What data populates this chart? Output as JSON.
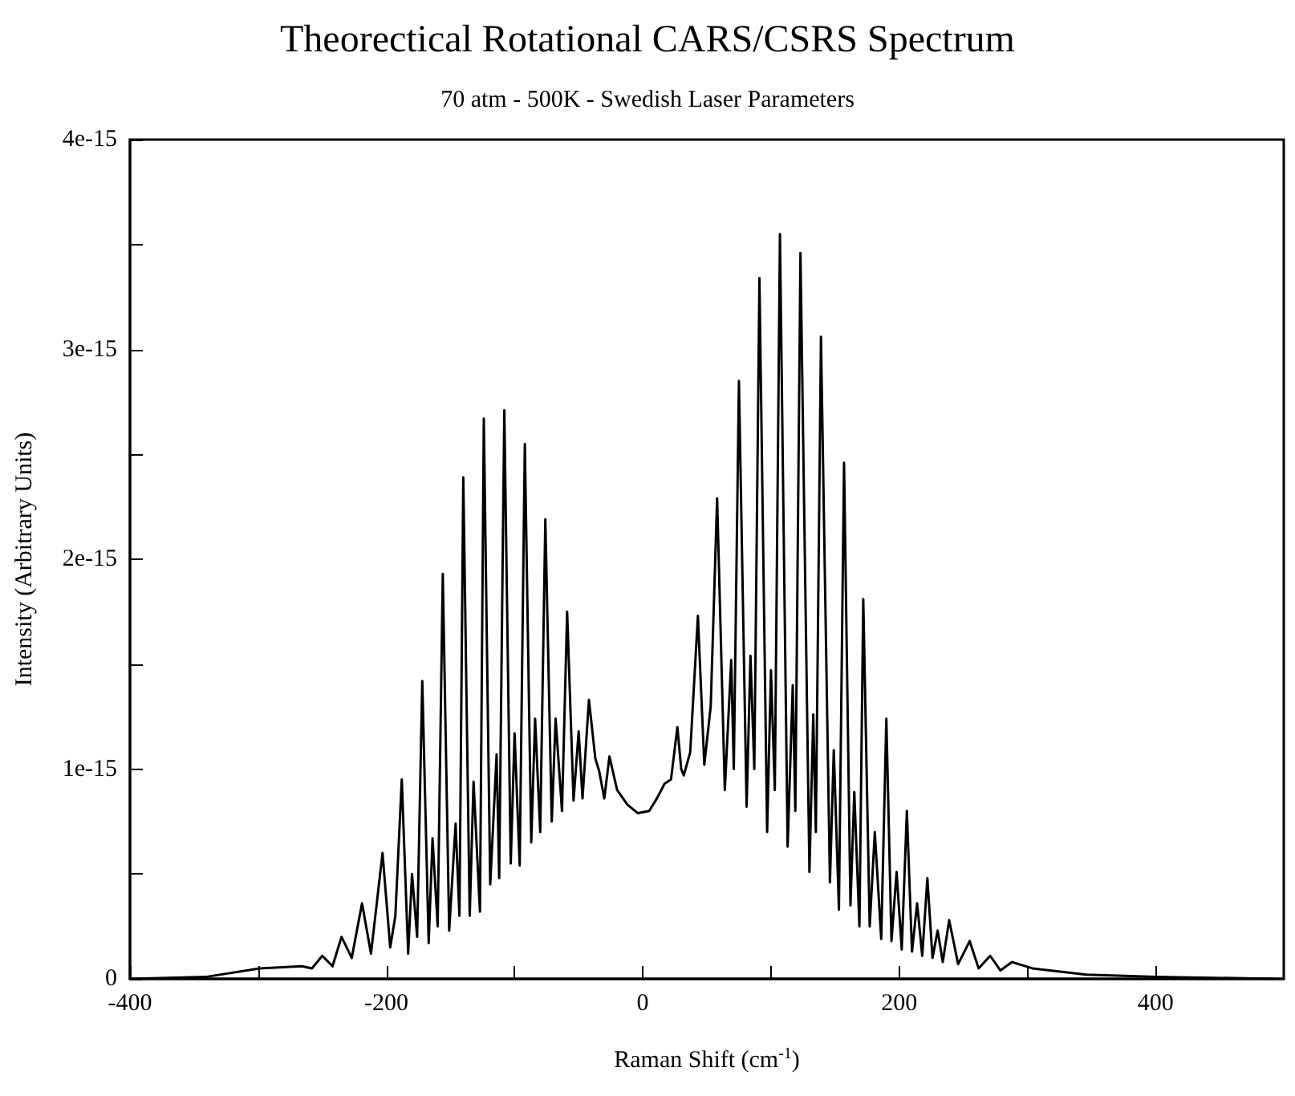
{
  "chart_data": {
    "type": "line",
    "title": "Theorectical Rotational CARS/CSRS Spectrum",
    "subtitle": "70 atm - 500K - Swedish Laser Parameters",
    "xlabel": "Raman Shift (cm$^{-1}$)",
    "ylabel": "Intensity (Arbitrary Units)",
    "xlim": [
      -400,
      500
    ],
    "xticks": [
      -400,
      {
        "value": -300,
        "label": null
      },
      -200,
      {
        "value": -100,
        "label": null
      },
      0,
      {
        "value": 100,
        "label": null
      },
      200,
      {
        "value": 300,
        "label": null
      },
      400
    ],
    "ylim": [
      0,
      4e-15
    ],
    "yticks": [
      0,
      {
        "value": 5e-16,
        "label": null
      },
      1e-15,
      {
        "value": 1.5e-15,
        "label": null
      },
      2e-15,
      {
        "value": 2.5e-15,
        "label": null
      },
      3e-15,
      {
        "value": 3.5e-15,
        "label": null
      },
      4e-15
    ],
    "grid": false,
    "series": [
      {
        "color": "#000000",
        "x": [
          -400,
          -340,
          -299,
          -266,
          -258,
          -250,
          -242,
          -235,
          -227,
          -219,
          -212,
          -203,
          -197,
          -193,
          -188,
          -183,
          -180,
          -176,
          -172,
          -167,
          -164,
          -160,
          -156,
          -151,
          -146,
          -143,
          -140,
          -135,
          -132,
          -127,
          -124,
          -119,
          -114,
          -112,
          -108,
          -103,
          -100,
          -96,
          -92,
          -87,
          -84,
          -80,
          -76,
          -71,
          -68,
          -63,
          -59,
          -54,
          -50,
          -47,
          -42,
          -37,
          -34,
          -30,
          -26,
          -20,
          -12,
          -4,
          5,
          11,
          17,
          22,
          27,
          30,
          32,
          37,
          43,
          48,
          53,
          58,
          64,
          69,
          71,
          75,
          81,
          84,
          87,
          91,
          97,
          100,
          103,
          107,
          113,
          117,
          119,
          123,
          130,
          133,
          135,
          139,
          146,
          149,
          153,
          157,
          162,
          165,
          169,
          172,
          177,
          181,
          186,
          190,
          194,
          198,
          202,
          206,
          210,
          214,
          218,
          222,
          226,
          230,
          234,
          239,
          246,
          255,
          262,
          271,
          279,
          288,
          304,
          346,
          400,
          493
        ],
        "values": [
          0,
          1e-17,
          5e-17,
          6e-17,
          5e-17,
          1.1e-16,
          6e-17,
          2e-16,
          1e-16,
          3.6e-16,
          1.2e-16,
          6e-16,
          1.5e-16,
          3e-16,
          9.5e-16,
          1.2e-16,
          5e-16,
          2e-16,
          1.42e-15,
          1.7e-16,
          6.7e-16,
          2.5e-16,
          1.93e-15,
          2.3e-16,
          7.4e-16,
          3e-16,
          2.39e-15,
          3e-16,
          9.4e-16,
          3.2e-16,
          2.67e-15,
          4.5e-16,
          1.07e-15,
          4.8e-16,
          2.71e-15,
          5.5e-16,
          1.17e-15,
          5.4e-16,
          2.55e-15,
          6.5e-16,
          1.24e-15,
          7e-16,
          2.19e-15,
          7.5e-16,
          1.24e-15,
          8e-16,
          1.75e-15,
          8.5e-16,
          1.18e-15,
          8.6e-16,
          1.33e-15,
          1.05e-15,
          9.9e-16,
          8.6e-16,
          1.06e-15,
          9e-16,
          8.3e-16,
          7.9e-16,
          8e-16,
          8.6e-16,
          9.3e-16,
          9.5e-16,
          1.2e-15,
          1e-15,
          9.7e-16,
          1.08e-15,
          1.73e-15,
          1.02e-15,
          1.3e-15,
          2.29e-15,
          9e-16,
          1.52e-15,
          1e-15,
          2.85e-15,
          8.2e-16,
          1.54e-15,
          1e-15,
          3.34e-15,
          7e-16,
          1.47e-15,
          9e-16,
          3.55e-15,
          6.3e-16,
          1.4e-15,
          8e-16,
          3.46e-15,
          5.1e-16,
          1.26e-15,
          7e-16,
          3.06e-15,
          4.6e-16,
          1.09e-15,
          3.3e-16,
          2.46e-15,
          3.5e-16,
          8.9e-16,
          2.5e-16,
          1.81e-15,
          2.5e-16,
          7e-16,
          1.9e-16,
          1.24e-15,
          1.8e-16,
          5.1e-16,
          1.4e-16,
          8e-16,
          1.3e-16,
          3.6e-16,
          1.1e-16,
          4.8e-16,
          1e-16,
          2.3e-16,
          8e-17,
          2.8e-16,
          7e-17,
          1.8e-16,
          5e-17,
          1.1e-16,
          4e-17,
          8e-17,
          5e-17,
          2e-17,
          1e-17,
          0
        ]
      }
    ]
  }
}
